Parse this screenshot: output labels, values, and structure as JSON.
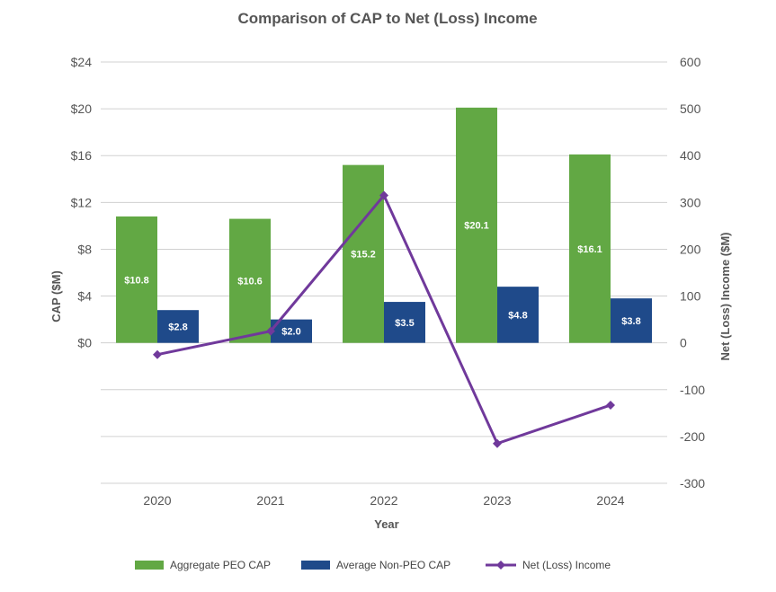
{
  "chart_data": {
    "type": "bar",
    "title": "Comparison of CAP to Net (Loss) Income",
    "xlabel": "Year",
    "ylabel_left": "CAP ($M)",
    "ylabel_right": "Net (Loss) Income ($M)",
    "categories": [
      "2020",
      "2021",
      "2022",
      "2023",
      "2024"
    ],
    "ylim_left": [
      -12,
      24
    ],
    "ylim_right": [
      -300,
      600
    ],
    "left_ticks": [
      {
        "value": 24,
        "label": "$24"
      },
      {
        "value": 20,
        "label": "$20"
      },
      {
        "value": 16,
        "label": "$16"
      },
      {
        "value": 12,
        "label": "$12"
      },
      {
        "value": 8,
        "label": "$8"
      },
      {
        "value": 4,
        "label": "$4"
      },
      {
        "value": 0,
        "label": "$0"
      }
    ],
    "right_ticks": [
      {
        "value": 600,
        "label": "600"
      },
      {
        "value": 500,
        "label": "500"
      },
      {
        "value": 400,
        "label": "400"
      },
      {
        "value": 300,
        "label": "300"
      },
      {
        "value": 200,
        "label": "200"
      },
      {
        "value": 100,
        "label": "100"
      },
      {
        "value": 0,
        "label": "0"
      },
      {
        "value": -100,
        "label": "-100"
      },
      {
        "value": -200,
        "label": "-200"
      },
      {
        "value": -300,
        "label": "-300"
      }
    ],
    "grid": true,
    "legend_position": "bottom",
    "series": [
      {
        "name": "Aggregate PEO CAP",
        "kind": "bar",
        "axis": "left",
        "color": "#62a844",
        "values": [
          10.8,
          10.6,
          15.2,
          20.1,
          16.1
        ],
        "labels": [
          "$10.8",
          "$10.6",
          "$15.2",
          "$20.1",
          "$16.1"
        ]
      },
      {
        "name": "Average Non-PEO CAP",
        "kind": "bar",
        "axis": "left",
        "color": "#1f4a8a",
        "values": [
          2.8,
          2.0,
          3.5,
          4.8,
          3.8
        ],
        "labels": [
          "$2.8",
          "$2.0",
          "$3.5",
          "$4.8",
          "$3.8"
        ]
      },
      {
        "name": "Net (Loss) Income",
        "kind": "line",
        "axis": "right",
        "color": "#70399b",
        "marker": "diamond",
        "values": [
          -25,
          25,
          315,
          -215,
          -133
        ]
      }
    ]
  }
}
